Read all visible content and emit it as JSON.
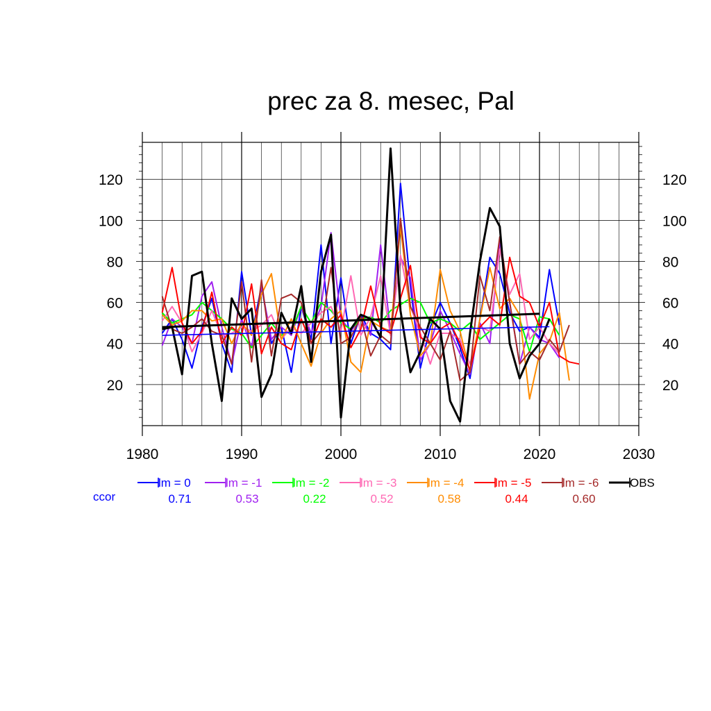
{
  "chart_data": {
    "type": "line",
    "title": "prec za 8. mesec, Pal",
    "xlabel": "",
    "ylabel": "",
    "xlim": [
      1980,
      2030
    ],
    "ylim": [
      0,
      138
    ],
    "x_ticks": [
      1980,
      1990,
      2000,
      2010,
      2020,
      2030
    ],
    "y_ticks": [
      20,
      40,
      60,
      80,
      100,
      120
    ],
    "grid": true,
    "legend_position": "bottom",
    "corr_label": "ccor",
    "series": [
      {
        "name": "lm = 0",
        "color": "#0000ff",
        "corr": "0.71",
        "x_start": 1982,
        "values": [
          45,
          52,
          42,
          28,
          48,
          62,
          40,
          26,
          75,
          44,
          68,
          40,
          48,
          26,
          58,
          42,
          88,
          40,
          72,
          40,
          54,
          45,
          42,
          37,
          118,
          68,
          28,
          48,
          60,
          50,
          38,
          23,
          52,
          82,
          74,
          55,
          46,
          48,
          43,
          76,
          49
        ]
      },
      {
        "name": "lm = -1",
        "color": "#a020f0",
        "corr": "0.53",
        "x_start": 1982,
        "values": [
          39,
          52,
          48,
          40,
          63,
          70,
          48,
          30,
          52,
          38,
          68,
          42,
          48,
          44,
          58,
          45,
          58,
          94,
          52,
          46,
          52,
          44,
          88,
          46,
          82,
          72,
          32,
          40,
          56,
          46,
          35,
          25,
          50,
          40,
          90,
          60,
          30,
          48,
          42,
          40,
          33
        ]
      },
      {
        "name": "lm = -2",
        "color": "#00ff00",
        "corr": "0.22",
        "x_start": 1982,
        "values": [
          55,
          50,
          52,
          54,
          60,
          56,
          52,
          47,
          45,
          38,
          44,
          50,
          44,
          46,
          58,
          50,
          60,
          56,
          50,
          47,
          52,
          53,
          50,
          56,
          59,
          62,
          60,
          50,
          52,
          50,
          46,
          50,
          42,
          46,
          50,
          54,
          52,
          36,
          53,
          52,
          44
        ]
      },
      {
        "name": "lm = -3",
        "color": "#ff69b4",
        "corr": "0.52",
        "x_start": 1982,
        "values": [
          51,
          58,
          50,
          36,
          45,
          56,
          44,
          45,
          48,
          46,
          49,
          54,
          42,
          48,
          45,
          50,
          55,
          58,
          46,
          73,
          44,
          53,
          73,
          44,
          83,
          58,
          45,
          30,
          45,
          45,
          42,
          30,
          48,
          46,
          86,
          64,
          74,
          42,
          48,
          40,
          35
        ]
      },
      {
        "name": "lm = -4",
        "color": "#ff8c00",
        "corr": "0.58",
        "x_start": 1982,
        "values": [
          54,
          49,
          51,
          56,
          56,
          51,
          52,
          40,
          50,
          44,
          64,
          74,
          42,
          52,
          40,
          29,
          45,
          52,
          56,
          31,
          26,
          51,
          48,
          46,
          97,
          54,
          34,
          40,
          76,
          56,
          46,
          26,
          52,
          77,
          57,
          62,
          54,
          13,
          35,
          41,
          55,
          22
        ]
      },
      {
        "name": "lm = -5",
        "color": "#ff0000",
        "corr": "0.44",
        "x_start": 1982,
        "values": [
          55,
          77,
          50,
          40,
          46,
          65,
          40,
          48,
          44,
          69,
          35,
          48,
          40,
          37,
          52,
          40,
          52,
          48,
          54,
          38,
          47,
          68,
          48,
          45,
          62,
          78,
          43,
          40,
          47,
          50,
          40,
          27,
          48,
          53,
          49,
          82,
          63,
          60,
          48,
          60,
          34,
          31,
          30
        ]
      },
      {
        "name": "lm = -6",
        "color": "#a52a2a",
        "corr": "0.60",
        "x_start": 1982,
        "values": [
          63,
          47,
          45,
          48,
          52,
          46,
          44,
          30,
          70,
          31,
          71,
          34,
          62,
          64,
          60,
          40,
          46,
          77,
          40,
          43,
          53,
          34,
          44,
          40,
          101,
          58,
          48,
          40,
          32,
          46,
          22,
          26,
          73,
          56,
          92,
          60,
          30,
          36,
          32,
          42,
          36,
          49
        ]
      },
      {
        "name": "OBS",
        "color": "#000000",
        "corr": "",
        "x_start": 1982,
        "values": [
          47,
          48,
          25,
          73,
          75,
          40,
          12,
          62,
          52,
          57,
          14,
          25,
          55,
          45,
          68,
          31,
          75,
          93,
          4,
          47,
          54,
          52,
          43,
          135,
          56,
          26,
          36,
          52,
          47,
          12,
          2,
          45,
          80,
          106,
          97,
          40,
          23,
          34,
          40,
          52
        ]
      }
    ],
    "trends": [
      {
        "name": "lm = 0",
        "color": "#0000ff",
        "x": [
          1982,
          2021
        ],
        "y": [
          44.0,
          48.2
        ]
      },
      {
        "name": "OBS",
        "color": "#000000",
        "x": [
          1982,
          2020
        ],
        "y": [
          48.0,
          54.5
        ]
      }
    ]
  }
}
